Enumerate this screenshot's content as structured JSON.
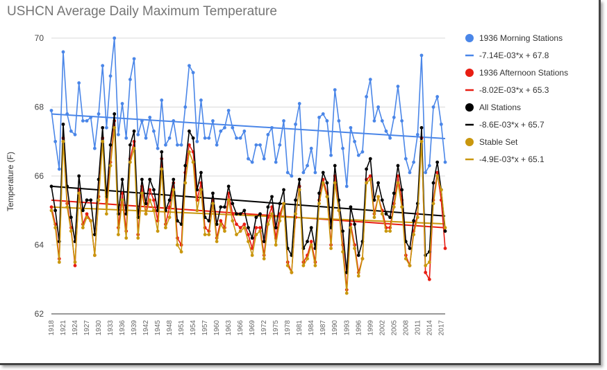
{
  "chart_data": {
    "type": "line",
    "title": "USHCN Average Daily Maximum Temperature",
    "ylabel": "Temperature (F)",
    "xlabel": "",
    "ylim": [
      62,
      70
    ],
    "yticks": [
      62,
      64,
      66,
      68,
      70
    ],
    "xlim": [
      1918,
      2018
    ],
    "xticks": [
      1918,
      1921,
      1924,
      1927,
      1930,
      1933,
      1936,
      1939,
      1942,
      1945,
      1948,
      1951,
      1954,
      1957,
      1960,
      1963,
      1966,
      1969,
      1972,
      1975,
      1978,
      1981,
      1984,
      1987,
      1990,
      1993,
      1996,
      1999,
      2002,
      2005,
      2008,
      2011,
      2014,
      2017
    ],
    "grid": true,
    "legend_position": "right",
    "x": [
      1918,
      1919,
      1920,
      1921,
      1922,
      1923,
      1924,
      1925,
      1926,
      1927,
      1928,
      1929,
      1930,
      1931,
      1932,
      1933,
      1934,
      1935,
      1936,
      1937,
      1938,
      1939,
      1940,
      1941,
      1942,
      1943,
      1944,
      1945,
      1946,
      1947,
      1948,
      1949,
      1950,
      1951,
      1952,
      1953,
      1954,
      1955,
      1956,
      1957,
      1958,
      1959,
      1960,
      1961,
      1962,
      1963,
      1964,
      1965,
      1966,
      1967,
      1968,
      1969,
      1970,
      1971,
      1972,
      1973,
      1974,
      1975,
      1976,
      1977,
      1978,
      1979,
      1980,
      1981,
      1982,
      1983,
      1984,
      1985,
      1986,
      1987,
      1988,
      1989,
      1990,
      1991,
      1992,
      1993,
      1994,
      1995,
      1996,
      1997,
      1998,
      1999,
      2000,
      2001,
      2002,
      2003,
      2004,
      2005,
      2006,
      2007,
      2008,
      2009,
      2010,
      2011,
      2012,
      2013,
      2014,
      2015,
      2016,
      2017,
      2018
    ],
    "series": [
      {
        "name": "1936 Morning Stations",
        "color": "#4a86e8",
        "values": [
          67.9,
          67.0,
          66.2,
          69.6,
          67.8,
          67.3,
          67.2,
          68.7,
          67.6,
          67.6,
          67.7,
          66.8,
          67.8,
          69.2,
          67.4,
          68.9,
          70.0,
          67.2,
          68.1,
          67.1,
          68.8,
          69.4,
          67.2,
          67.6,
          67.1,
          67.7,
          67.3,
          66.8,
          68.2,
          66.9,
          67.1,
          67.6,
          66.9,
          66.9,
          68.0,
          69.2,
          69.0,
          67.0,
          68.2,
          67.1,
          67.1,
          67.6,
          66.9,
          67.3,
          67.4,
          67.9,
          67.4,
          67.1,
          67.1,
          67.3,
          66.5,
          66.4,
          66.9,
          66.9,
          66.5,
          67.2,
          67.4,
          66.4,
          66.9,
          67.6,
          66.1,
          66.0,
          67.5,
          68.1,
          66.1,
          66.3,
          66.8,
          66.1,
          67.7,
          67.8,
          67.6,
          66.6,
          68.5,
          67.6,
          66.8,
          65.7,
          67.4,
          67.0,
          66.6,
          66.7,
          68.3,
          68.8,
          67.6,
          68.0,
          67.6,
          67.3,
          67.1,
          67.7,
          68.6,
          67.6,
          66.5,
          66.1,
          66.4,
          67.2,
          69.5,
          66.1,
          66.3,
          68.0,
          68.3,
          67.5,
          66.4
        ]
      },
      {
        "name": "1936 Afternoon Stations",
        "color": "#e81d12",
        "values": [
          65.1,
          64.6,
          63.6,
          67.1,
          65.2,
          64.5,
          63.4,
          65.6,
          64.6,
          64.9,
          64.7,
          63.7,
          65.4,
          67.1,
          65.2,
          66.4,
          67.6,
          64.5,
          65.5,
          64.4,
          66.5,
          67.0,
          64.3,
          65.7,
          64.9,
          65.6,
          65.3,
          64.7,
          66.5,
          64.6,
          65.1,
          65.8,
          64.2,
          64.0,
          66.1,
          66.9,
          66.7,
          65.3,
          65.8,
          64.5,
          64.4,
          65.3,
          64.2,
          64.7,
          64.5,
          65.5,
          64.9,
          64.6,
          64.5,
          64.6,
          64.3,
          63.9,
          64.5,
          64.5,
          63.7,
          64.8,
          65.1,
          64.2,
          64.9,
          65.2,
          63.5,
          63.2,
          64.8,
          65.7,
          63.5,
          63.7,
          64.1,
          63.5,
          65.3,
          65.9,
          65.5,
          64.0,
          66.0,
          65.0,
          64.0,
          62.7,
          64.6,
          64.0,
          63.2,
          63.6,
          65.9,
          66.0,
          64.9,
          65.4,
          65.0,
          64.5,
          64.5,
          65.2,
          66.0,
          65.3,
          63.7,
          63.4,
          64.4,
          64.9,
          67.1,
          63.2,
          63.0,
          65.3,
          66.1,
          65.3,
          63.9
        ]
      },
      {
        "name": "All Stations",
        "color": "#000000",
        "values": [
          65.7,
          65.0,
          64.1,
          67.5,
          65.7,
          64.8,
          64.1,
          66.0,
          65.0,
          65.3,
          65.3,
          64.3,
          65.9,
          67.4,
          65.4,
          66.9,
          67.8,
          64.9,
          65.9,
          64.9,
          66.9,
          67.3,
          64.8,
          65.9,
          65.2,
          65.9,
          65.6,
          65.0,
          66.7,
          65.0,
          65.3,
          65.9,
          64.7,
          64.6,
          66.3,
          67.3,
          67.1,
          65.6,
          66.1,
          64.8,
          64.7,
          65.5,
          64.6,
          65.1,
          65.1,
          65.7,
          65.2,
          64.9,
          64.9,
          65.0,
          64.5,
          64.2,
          64.8,
          64.9,
          64.1,
          65.1,
          65.4,
          64.5,
          65.2,
          65.6,
          63.9,
          63.7,
          65.3,
          65.9,
          63.9,
          64.1,
          64.5,
          63.9,
          65.5,
          66.1,
          65.8,
          64.5,
          66.3,
          65.3,
          64.4,
          63.2,
          65.1,
          64.6,
          63.7,
          64.1,
          66.2,
          66.5,
          65.3,
          65.8,
          65.3,
          64.9,
          64.8,
          65.5,
          66.3,
          65.6,
          64.1,
          63.9,
          64.7,
          65.2,
          67.4,
          63.7,
          63.8,
          65.8,
          66.4,
          65.6,
          64.4
        ]
      },
      {
        "name": "Stable Set",
        "color": "#c9970e",
        "values": [
          65.0,
          64.5,
          63.5,
          67.0,
          65.1,
          64.4,
          63.5,
          65.5,
          64.5,
          64.8,
          64.7,
          63.7,
          65.3,
          67.0,
          64.9,
          66.3,
          67.4,
          64.3,
          65.3,
          64.2,
          66.4,
          66.8,
          64.2,
          65.5,
          64.9,
          65.3,
          65.0,
          64.4,
          66.2,
          64.5,
          64.8,
          65.6,
          64.0,
          63.8,
          65.8,
          66.7,
          66.4,
          65.0,
          65.6,
          64.3,
          64.3,
          65.2,
          64.1,
          64.6,
          64.4,
          65.3,
          64.7,
          64.3,
          64.4,
          64.5,
          64.1,
          63.7,
          64.3,
          64.4,
          63.6,
          64.6,
          64.9,
          64.0,
          64.7,
          65.2,
          63.4,
          63.2,
          64.9,
          65.6,
          63.4,
          63.6,
          64.0,
          63.4,
          65.2,
          65.8,
          65.4,
          63.9,
          65.8,
          65.0,
          63.8,
          62.6,
          64.5,
          63.9,
          63.1,
          63.6,
          65.8,
          65.9,
          64.8,
          65.4,
          64.9,
          64.4,
          64.4,
          65.1,
          65.8,
          65.1,
          63.6,
          63.4,
          64.3,
          64.8,
          67.0,
          63.4,
          63.5,
          65.2,
          66.0,
          65.6,
          64.5
        ]
      }
    ],
    "trendlines": [
      {
        "label": "-7.14E-03*x + 67.8",
        "color": "#4a86e8",
        "slope": -0.00714,
        "intercept": 67.8
      },
      {
        "label": "-8.02E-03*x + 65.3",
        "color": "#e81d12",
        "slope": -0.00802,
        "intercept": 65.3
      },
      {
        "label": "-8.6E-03*x + 65.7",
        "color": "#000000",
        "slope": -0.0086,
        "intercept": 65.7
      },
      {
        "label": "-4.9E-03*x + 65.1",
        "color": "#c9970e",
        "slope": -0.0049,
        "intercept": 65.1
      }
    ],
    "legend": [
      {
        "label": "1936 Morning Stations",
        "kind": "dot",
        "color": "#4a86e8"
      },
      {
        "label": "-7.14E-03*x + 67.8",
        "kind": "line",
        "color": "#4a86e8"
      },
      {
        "label": "1936 Afternoon Stations",
        "kind": "dot",
        "color": "#e81d12"
      },
      {
        "label": "-8.02E-03*x + 65.3",
        "kind": "line",
        "color": "#e81d12"
      },
      {
        "label": "All Stations",
        "kind": "dot",
        "color": "#000000"
      },
      {
        "label": "-8.6E-03*x + 65.7",
        "kind": "line",
        "color": "#000000"
      },
      {
        "label": "Stable Set",
        "kind": "dot",
        "color": "#c9970e"
      },
      {
        "label": "-4.9E-03*x + 65.1",
        "kind": "line",
        "color": "#c9970e"
      }
    ]
  }
}
